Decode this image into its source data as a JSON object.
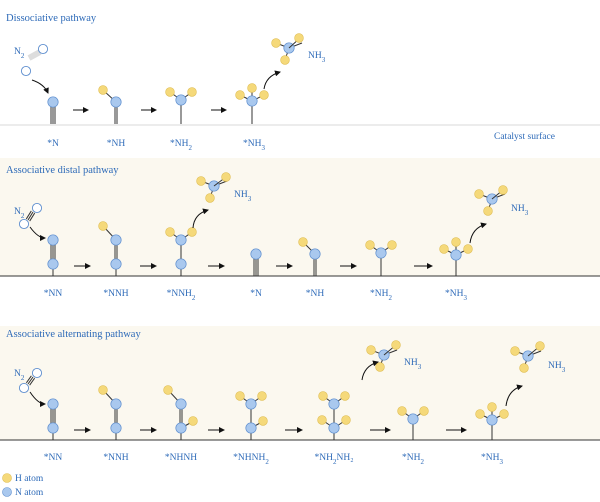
{
  "sections": {
    "dissociative": {
      "title": "Dissociative pathway",
      "n2_label": "N",
      "n2_sub": "2",
      "surface_label": "Catalyst surface",
      "stages": [
        {
          "pre": "*N",
          "sub": "",
          "post": ""
        },
        {
          "pre": "*NH",
          "sub": "",
          "post": ""
        },
        {
          "pre": "*NH",
          "sub": "2",
          "post": ""
        },
        {
          "pre": "*NH",
          "sub": "3",
          "post": ""
        }
      ],
      "product": {
        "pre": "NH",
        "sub": "3"
      }
    },
    "distal": {
      "title": "Associative distal pathway",
      "n2_label": "N",
      "n2_sub": "2",
      "stages": [
        {
          "pre": "*NN",
          "sub": "",
          "post": ""
        },
        {
          "pre": "*NNH",
          "sub": "",
          "post": ""
        },
        {
          "pre": "*NNH",
          "sub": "2",
          "post": ""
        },
        {
          "pre": "*N",
          "sub": "",
          "post": ""
        },
        {
          "pre": "*NH",
          "sub": "",
          "post": ""
        },
        {
          "pre": "*NH",
          "sub": "2",
          "post": ""
        },
        {
          "pre": "*NH",
          "sub": "3",
          "post": ""
        }
      ],
      "product1": {
        "pre": "NH",
        "sub": "3"
      },
      "product2": {
        "pre": "NH",
        "sub": "3"
      }
    },
    "alternating": {
      "title": "Associative alternating pathway",
      "n2_label": "N",
      "n2_sub": "2",
      "stages": [
        {
          "pre": "*NN",
          "sub": "",
          "post": ""
        },
        {
          "pre": "*NNH",
          "sub": "",
          "post": ""
        },
        {
          "pre": "*NHNH",
          "sub": "",
          "post": ""
        },
        {
          "pre": "*NHNH",
          "sub": "2",
          "post": ""
        },
        {
          "pre": "*NH",
          "sub": "2",
          "post": "NH₂"
        },
        {
          "pre": "*NH",
          "sub": "2",
          "post": ""
        },
        {
          "pre": "*NH",
          "sub": "3",
          "post": ""
        }
      ],
      "product1": {
        "pre": "NH",
        "sub": "3"
      },
      "product2": {
        "pre": "NH",
        "sub": "3"
      }
    }
  },
  "legend": {
    "h_label": "H atom",
    "n_label": "N atom",
    "h_color": "#f5d97a",
    "n_color": "#a9c8ee"
  },
  "colors": {
    "text": "#2d6ab8",
    "band": "#fbf8ef",
    "line": "#333333"
  }
}
